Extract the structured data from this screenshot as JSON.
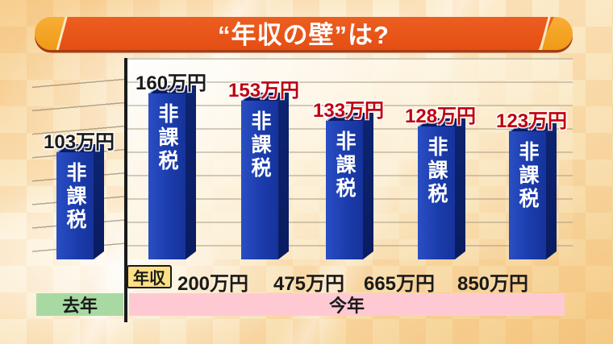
{
  "title": {
    "text": "“年収の壁”は?"
  },
  "chart_data": {
    "type": "bar",
    "title": "“年収の壁”は?",
    "unit": "万円",
    "bar_text": "非課税",
    "x_axis_label": "年収",
    "income_thresholds": [
      "200万円",
      "475万円",
      "665万円",
      "850万円"
    ],
    "groups": [
      {
        "period": "去年",
        "bars": [
          {
            "value": 103,
            "label": "103万円",
            "label_color": "#1A1A1A"
          }
        ]
      },
      {
        "period": "今年",
        "bars": [
          {
            "value": 160,
            "label": "160万円",
            "label_color": "#1A1A1A"
          },
          {
            "value": 153,
            "label": "153万円",
            "label_color": "#BE0011"
          },
          {
            "value": 133,
            "label": "133万円",
            "label_color": "#BE0011"
          },
          {
            "value": 128,
            "label": "128万円",
            "label_color": "#BE0011"
          },
          {
            "value": 123,
            "label": "123万円",
            "label_color": "#BE0011"
          }
        ]
      }
    ],
    "ylim": [
      0,
      170
    ],
    "grid": true,
    "legend_position": "none"
  },
  "colors": {
    "banner": "#E85518",
    "banner_cap": "#F4A223",
    "banner_shadow": "#9E2F08",
    "bar_front": "#1C3FAF",
    "bar_dark": "#0A1C63",
    "value_red": "#BE0011",
    "value_black": "#1A1A1A",
    "band_last_year": "#A9D9A3",
    "band_this_year": "#FFC9D3",
    "x_label_box": "#FCE084"
  }
}
